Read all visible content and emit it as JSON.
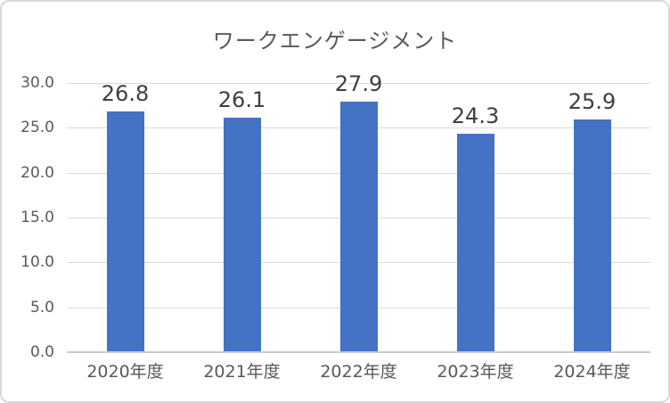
{
  "chart_data": {
    "type": "bar",
    "title": "ワークエンゲージメント",
    "categories": [
      "2020年度",
      "2021年度",
      "2022年度",
      "2023年度",
      "2024年度"
    ],
    "values": [
      26.8,
      26.1,
      27.9,
      24.3,
      25.9
    ],
    "data_labels": [
      "26.8",
      "26.1",
      "27.9",
      "24.3",
      "25.9"
    ],
    "xlabel": "",
    "ylabel": "",
    "ylim": [
      0,
      30
    ],
    "ytick_step": 5,
    "ytick_labels": [
      "0.0",
      "5.0",
      "10.0",
      "15.0",
      "20.0",
      "25.0",
      "30.0"
    ],
    "grid": "horizontal",
    "legend_position": "none",
    "colors": {
      "bar": "#4472C4",
      "gridline": "#DADADA",
      "axis_line": "#C9C9C9",
      "title_text": "#595959",
      "axis_text": "#595959",
      "data_label_text": "#3F3F3F",
      "background": "#FFFFFF",
      "border": "#D9D9D9"
    }
  }
}
